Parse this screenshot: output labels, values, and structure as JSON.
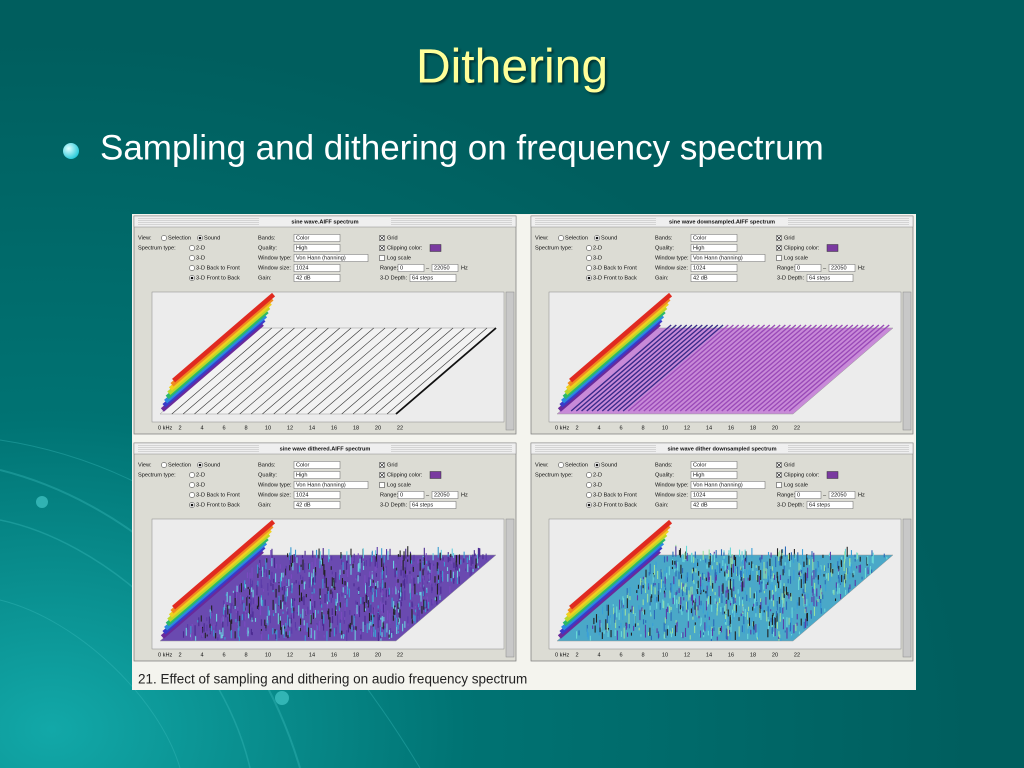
{
  "title": "Dithering",
  "bullets": [
    "Sampling and dithering on frequency spectrum"
  ],
  "figure": {
    "panels": [
      {
        "title": "sine wave.AIFF spectrum"
      },
      {
        "title": "sine wave downsampled.AIFF spectrum"
      },
      {
        "title": "sine wave dithered.AIFF spectrum"
      },
      {
        "title": "sine wave dither downsampled spectrum"
      }
    ],
    "controls": {
      "view": "View:",
      "selection": "Selection",
      "sound": "Sound",
      "spectrum_type": "Spectrum type:",
      "types": [
        "2-D",
        "3-D",
        "3-D Back to Front",
        "3-D Front to Back"
      ],
      "bands": "Bands:",
      "bands_value": "Color",
      "quality": "Quality:",
      "quality_value": "High",
      "window_type": "Window type:",
      "window_type_value": "Von Hann (hanning)",
      "window_size": "Window size:",
      "window_size_value": "1024",
      "gain": "Gain:",
      "gain_value": "42 dB",
      "grid": "Grid",
      "clipping_color": "Clipping color:",
      "log_scale": "Log scale",
      "range": "Range:",
      "range_from": "0",
      "range_to": "22050",
      "range_unit": "Hz",
      "depth": "3-D Depth:",
      "depth_value": "64 steps"
    },
    "axis_labels": [
      "0 kHz",
      "2",
      "4",
      "6",
      "8",
      "10",
      "12",
      "14",
      "16",
      "18",
      "20",
      "22"
    ],
    "caption": "21. Effect of sampling and dithering on audio frequency spectrum"
  }
}
